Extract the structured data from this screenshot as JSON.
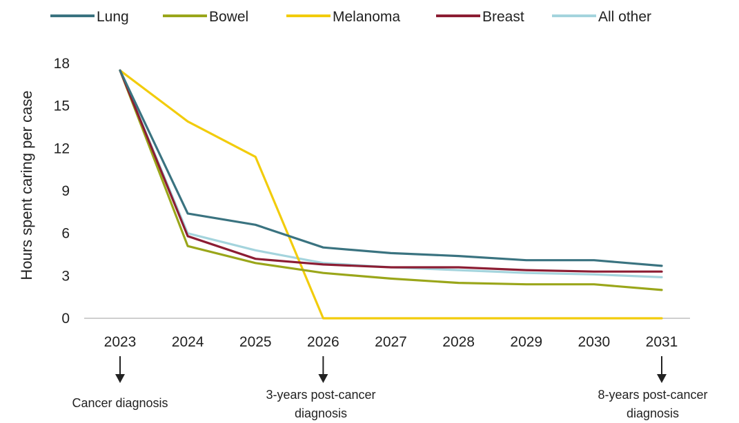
{
  "chart_data": {
    "type": "line",
    "title": "",
    "xlabel": "",
    "ylabel": "Hours spent caring per case",
    "x": [
      "2023",
      "2024",
      "2025",
      "2026",
      "2027",
      "2028",
      "2029",
      "2030",
      "2031"
    ],
    "ylim": [
      0,
      18
    ],
    "yticks": [
      "0",
      "3",
      "6",
      "9",
      "12",
      "15",
      "18"
    ],
    "grid": false,
    "legend_position": "top",
    "series": [
      {
        "name": "Lung",
        "color": "#3a7380",
        "values": [
          17.5,
          7.4,
          6.6,
          5.0,
          4.6,
          4.4,
          4.1,
          4.1,
          3.7
        ]
      },
      {
        "name": "Bowel",
        "color": "#9aa61a",
        "values": [
          17.5,
          5.1,
          3.9,
          3.2,
          2.8,
          2.5,
          2.4,
          2.4,
          2.0
        ]
      },
      {
        "name": "Melanoma",
        "color": "#f2cc0c",
        "values": [
          17.5,
          13.9,
          11.4,
          0,
          0,
          0,
          0,
          0,
          0
        ]
      },
      {
        "name": "Breast",
        "color": "#8c1d33",
        "values": [
          17.5,
          5.8,
          4.2,
          3.8,
          3.6,
          3.6,
          3.4,
          3.3,
          3.3
        ]
      },
      {
        "name": "All other",
        "color": "#a4d4dd",
        "values": [
          17.5,
          6.0,
          4.8,
          3.9,
          3.6,
          3.4,
          3.2,
          3.1,
          2.9
        ]
      }
    ],
    "annotations": [
      {
        "x": "2023",
        "text_lines": [
          "Cancer diagnosis"
        ]
      },
      {
        "x": "2026",
        "text_lines": [
          "3-years post-cancer",
          "diagnosis"
        ]
      },
      {
        "x": "2031",
        "text_lines": [
          "8-years post-cancer",
          "diagnosis"
        ]
      }
    ]
  }
}
